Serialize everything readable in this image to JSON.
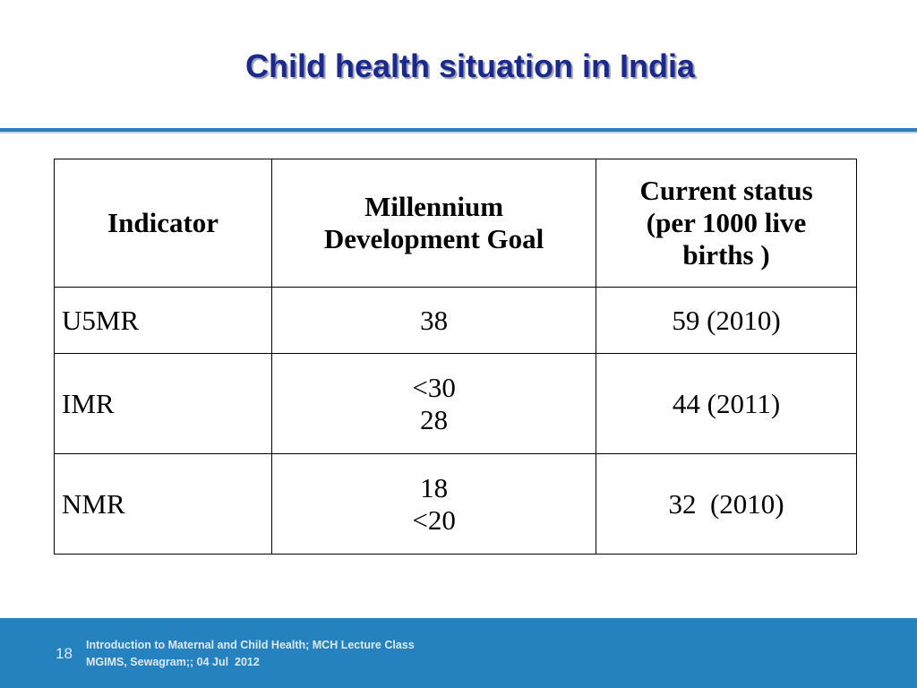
{
  "slide": {
    "title": "Child health situation in India",
    "page_number": "18",
    "footer": {
      "line1": "Introduction to Maternal and Child Health; MCH Lecture Class",
      "line2": "MGIMS, Sewagram;; 04 Jul  2012"
    }
  },
  "table": {
    "headers": {
      "indicator": "Indicator",
      "mdg_line1": "Millennium",
      "mdg_line2": "Development Goal",
      "current_line1": "Current status",
      "current_line2": "(per 1000 live",
      "current_line3": "births )"
    },
    "rows": [
      {
        "indicator": "U5MR",
        "mdg": [
          "38"
        ],
        "current": "59 (2010)"
      },
      {
        "indicator": "IMR",
        "mdg": [
          "<30",
          "28"
        ],
        "current": "44 (2011)"
      },
      {
        "indicator": "NMR",
        "mdg": [
          "18",
          "<20"
        ],
        "current": "32  (2010)"
      }
    ]
  },
  "colors": {
    "title": "#1a2a8c",
    "title_rule": "#2a7fb8",
    "footer_band": "#2582be"
  }
}
